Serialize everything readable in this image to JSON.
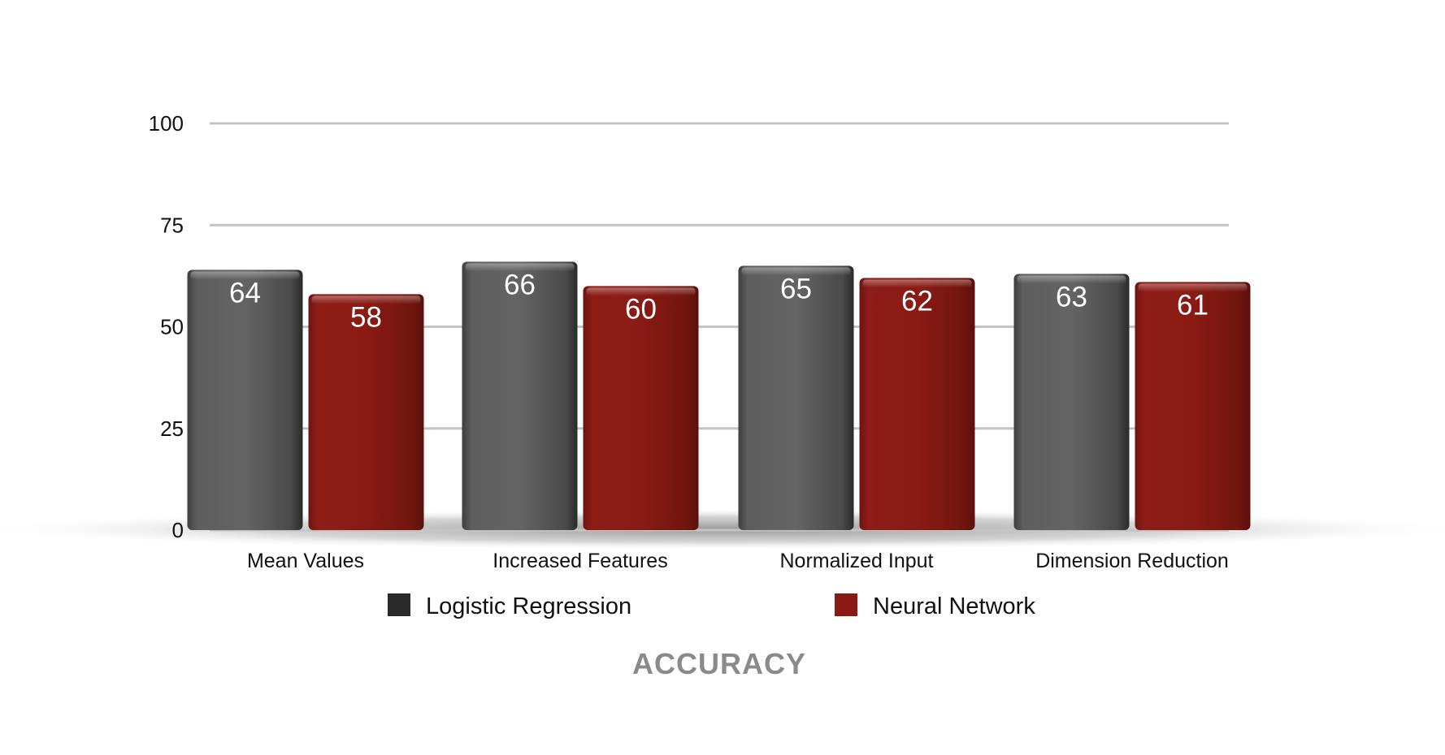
{
  "chart_data": {
    "type": "bar",
    "title": "ACCURACY",
    "categories": [
      "Mean Values",
      "Increased Features",
      "Normalized Input",
      "Dimension Reduction"
    ],
    "series": [
      {
        "name": "Logistic Regression",
        "values": [
          64,
          66,
          65,
          63
        ],
        "color": "#555555"
      },
      {
        "name": "Neural Network",
        "values": [
          58,
          60,
          62,
          61
        ],
        "color": "#8b1a14"
      }
    ],
    "ylim": [
      0,
      100
    ],
    "yticks": [
      0,
      25,
      50,
      75,
      100
    ],
    "grid": true,
    "legend_position": "bottom"
  }
}
